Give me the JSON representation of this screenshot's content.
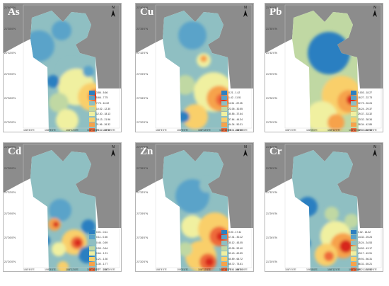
{
  "panels": [
    {
      "element": "As",
      "legend": [
        "3.86 - 5.66",
        "5.66 - 7.75",
        "7.75 - 10.02",
        "10.02 - 12.30",
        "12.30 - 18.13",
        "18.13 - 21.96",
        "21.96 - 26.32",
        "26.32 - 29.95",
        "29.95 - 34.83"
      ],
      "hotspot_level": 8
    },
    {
      "element": "Cu",
      "legend": [
        "0.21 - 1.42",
        "1.42 - 11.51",
        "11.51 - 22.05",
        "22.05 - 30.55",
        "30.55 - 37.64",
        "37.64 - 44.34",
        "44.34 - 50.31",
        "50.31 - 56.85",
        "56.85 - 67.18"
      ],
      "hotspot_level": 8
    },
    {
      "element": "Pb",
      "legend": [
        "0.003 - 18.27",
        "18.27 - 22.73",
        "22.73 - 26.24",
        "26.24 - 29.37",
        "29.37 - 33.32",
        "33.32 - 38.34",
        "38.34 - 42.85",
        "42.85 - 52.98",
        "52.98 - 68.11"
      ],
      "hotspot_level": 8
    },
    {
      "element": "Cd",
      "legend": [
        "0.01 - 0.11",
        "0.11 - 0.46",
        "0.46 - 0.59",
        "0.59 - 0.64",
        "0.64 - 1.21",
        "1.21 - 1.30",
        "1.30 - 1.77",
        "1.77 - 2.30",
        "2.30 - 2.51"
      ],
      "hotspot_level": 8
    },
    {
      "element": "Zn",
      "legend": [
        "0.00 - 17.41",
        "17.41 - 30.12",
        "30.12 - 43.05",
        "43.05 - 52.40",
        "52.40 - 60.59",
        "60.59 - 65.72",
        "65.72 - 73.61",
        "73.61 - 86.91",
        "86.91 - 110.18"
      ],
      "hotspot_level": 8
    },
    {
      "element": "Cr",
      "legend": [
        "0.02 - 14.32",
        "14.32 - 25.24",
        "25.24 - 34.53",
        "34.53 - 43.17",
        "43.17 - 49.91",
        "49.91 - 56.31",
        "56.31 - 65.21",
        "65.21 - 74.60",
        "74.60 - 91.91"
      ],
      "hotspot_level": 8
    }
  ],
  "north_label": "N",
  "lat_ticks": [
    "21°40'0\"N",
    "21°35'0\"N",
    "21°32'0\"N",
    "21°29'0\"N",
    "21°26'0\"N",
    "21°20'0\"N"
  ],
  "lon_ticks": [
    "108°4'0\"E",
    "108°8'0\"E",
    "108°12'0\"E",
    "108°16'0\"E",
    "108°20'0\"E"
  ],
  "colors": {
    "land": "#8c8c8c",
    "bay": "#2f8fd0",
    "ramp": [
      "#2c7fc1",
      "#5aa3c9",
      "#8fbfc2",
      "#c0d8a3",
      "#f0f0a0",
      "#f9cf6b",
      "#f6a24b",
      "#ee6a3a",
      "#d7281e"
    ]
  }
}
